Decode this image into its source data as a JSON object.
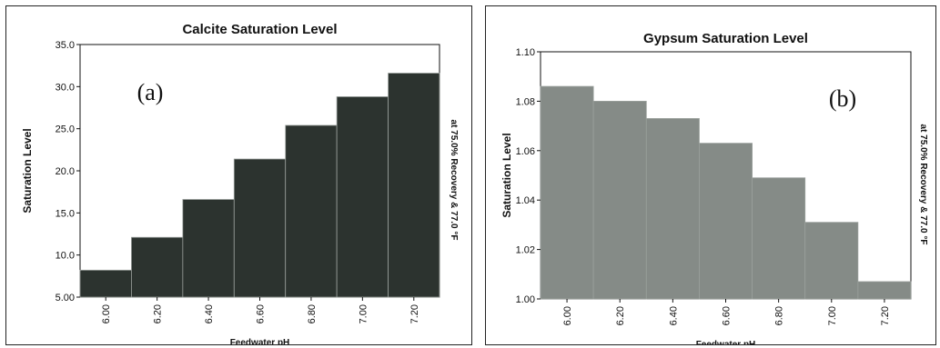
{
  "chart_data": [
    {
      "type": "bar",
      "panel_letter": "(a)",
      "title": "Calcite Saturation Level",
      "xlabel": "Feedwater pH",
      "ylabel": "Saturation Level",
      "side_note": "at 75.0% Recovery & 77.0 °F",
      "categories": [
        "6.00",
        "6.20",
        "6.40",
        "6.60",
        "6.80",
        "7.00",
        "7.20"
      ],
      "values": [
        8.2,
        12.1,
        16.6,
        21.4,
        25.4,
        28.8,
        31.6
      ],
      "ylim": [
        5.0,
        35.0
      ],
      "yticks": [
        "5.00",
        "10.0",
        "15.0",
        "20.0",
        "25.0",
        "30.0",
        "35.0"
      ],
      "bar_color": "#2c332f",
      "grid": false,
      "legend": "none"
    },
    {
      "type": "bar",
      "panel_letter": "(b)",
      "title": "Gypsum Saturation Level",
      "xlabel": "Feedwater pH",
      "ylabel": "Saturation Level",
      "side_note": "at 75.0% Recovery & 77.0 °F",
      "categories": [
        "6.00",
        "6.20",
        "6.40",
        "6.60",
        "6.80",
        "7.00",
        "7.20"
      ],
      "values": [
        1.086,
        1.08,
        1.073,
        1.063,
        1.049,
        1.031,
        1.007
      ],
      "ylim": [
        1.0,
        1.1
      ],
      "yticks": [
        "1.00",
        "1.02",
        "1.04",
        "1.06",
        "1.08",
        "1.10"
      ],
      "bar_color": "#858b87",
      "grid": false,
      "legend": "none"
    }
  ]
}
